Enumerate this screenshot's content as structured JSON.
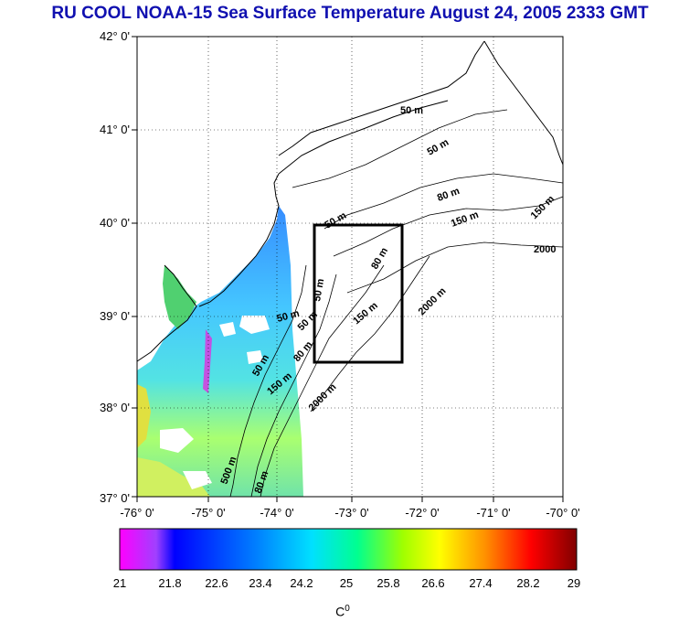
{
  "title": "RU COOL  NOAA-15 Sea Surface Temperature August 24, 2005 2333 GMT",
  "axes": {
    "lat_labels": [
      "42° 0'",
      "41° 0'",
      "40° 0'",
      "39° 0'",
      "38° 0'",
      "37° 0'"
    ],
    "lon_labels": [
      "-76° 0'",
      "-75° 0'",
      "-74° 0'",
      "-73° 0'",
      "-72° 0'",
      "-71° 0'",
      "-70° 0'"
    ]
  },
  "contour_labels": [
    "50 m",
    "50 m",
    "80 m",
    "150 m",
    "150 m",
    "2000",
    "80 m",
    "50 m",
    "50 m",
    "150 m",
    "2000 m",
    "50 m",
    "50 m",
    "80 m",
    "150 m",
    "2000 m",
    "500 m",
    "80 m",
    "50 m"
  ],
  "study_box": "black rectangle",
  "colorbar": {
    "tick_labels": [
      "21",
      "21.8",
      "22.6",
      "23.4",
      "24.2",
      "25",
      "25.8",
      "26.6",
      "27.4",
      "28.2",
      "29"
    ],
    "unit": "C",
    "unit_superscript": "0",
    "gradient_colors": [
      "#ff00ff",
      "#0000ff",
      "#00a0ff",
      "#00ffff",
      "#00ff80",
      "#80ff00",
      "#ffff00",
      "#ff8000",
      "#ff0000",
      "#800000"
    ]
  }
}
